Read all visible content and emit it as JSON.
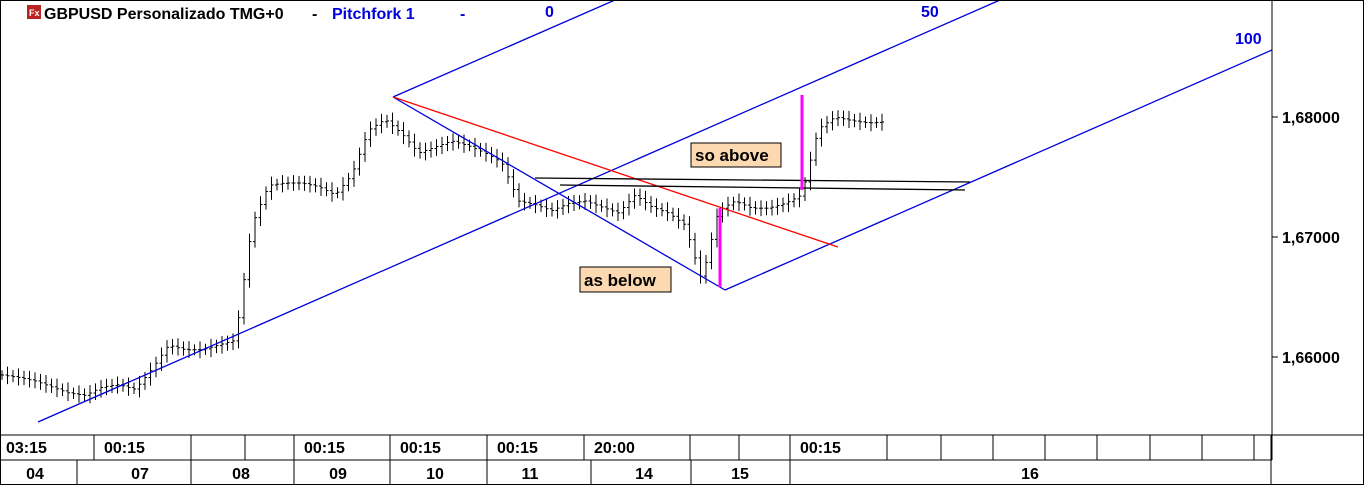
{
  "header": {
    "icon": "fx-logo-icon",
    "symbol_title": "GBPUSD Personalizado TMG+0",
    "drawing_title": "Pitchfork 1",
    "dropdown": "-"
  },
  "colors": {
    "pitchfork": "#0000dd",
    "trendline": "#ff0000",
    "marker": "#ff00ff",
    "label_bg": "#fcd9b0"
  },
  "annotations": {
    "so_above": "so above",
    "as_below": "as below",
    "fan_0": "0",
    "fan_50": "50",
    "fan_100": "100"
  },
  "chart_data": {
    "type": "bar",
    "title": "GBPUSD Personalizado TMG+0",
    "y_ticks": [
      "1,68000",
      "1,67000",
      "1,66000"
    ],
    "y_tick_values": [
      1.68,
      1.67,
      1.66
    ],
    "ylim": [
      1.6532,
      1.6898
    ],
    "x_time_labels": [
      "03:15",
      "00:15",
      "",
      "",
      "00:15",
      "00:15",
      "00:15",
      "20:00",
      "",
      "",
      "00:15",
      "",
      "",
      "",
      "",
      "",
      "",
      "",
      ""
    ],
    "x_day_labels": [
      "04",
      "07",
      "08",
      "09",
      "10",
      "11",
      "14",
      "15",
      "16"
    ],
    "closes": [
      1.6585,
      1.6583,
      1.658,
      1.6575,
      1.657,
      1.6568,
      1.6575,
      1.6577,
      1.6573,
      1.659,
      1.661,
      1.6606,
      1.6606,
      1.661,
      1.6614,
      1.671,
      1.6743,
      1.6745,
      1.6745,
      1.6742,
      1.6735,
      1.6752,
      1.6789,
      1.6798,
      1.6786,
      1.677,
      1.6775,
      1.678,
      1.6776,
      1.677,
      1.6762,
      1.673,
      1.6727,
      1.6722,
      1.6728,
      1.673,
      1.6725,
      1.672,
      1.6735,
      1.6725,
      1.672,
      1.671,
      1.6664,
      1.6722,
      1.673,
      1.6724,
      1.6724,
      1.6728,
      1.6735,
      1.679,
      1.68,
      1.6797,
      1.6795,
      1.6796
    ]
  }
}
